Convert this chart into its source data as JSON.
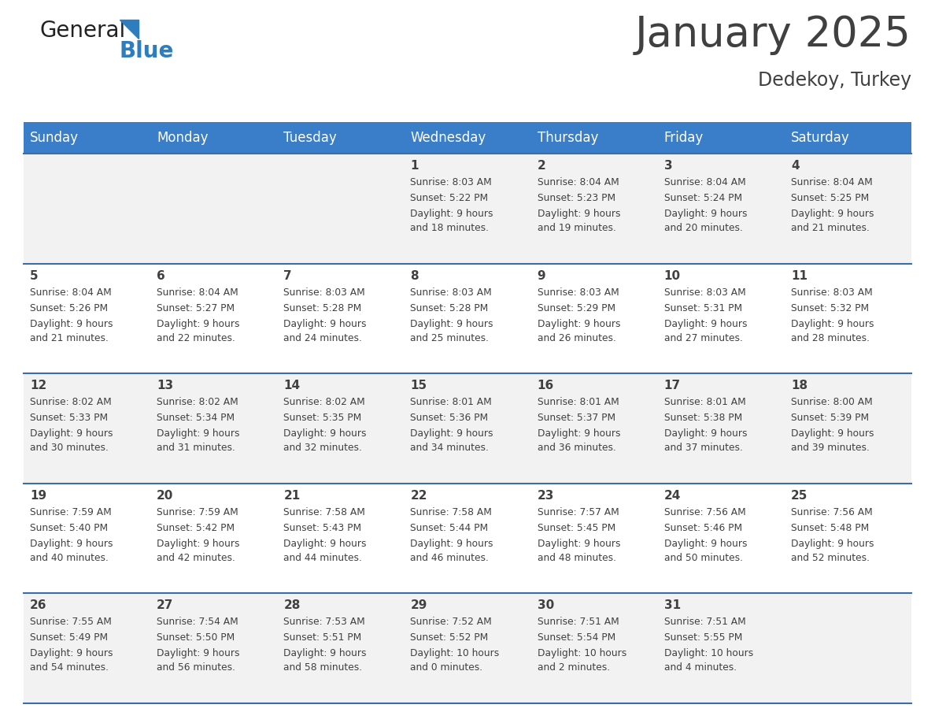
{
  "title": "January 2025",
  "subtitle": "Dedekoy, Turkey",
  "header_bg": "#3A7DC9",
  "header_text_color": "#FFFFFF",
  "cell_bg_row0": "#F2F2F2",
  "cell_bg_row1": "#FFFFFF",
  "row_line_color": "#3A6EA8",
  "text_color": "#404040",
  "days_of_week": [
    "Sunday",
    "Monday",
    "Tuesday",
    "Wednesday",
    "Thursday",
    "Friday",
    "Saturday"
  ],
  "calendar": [
    [
      {
        "day": "",
        "sunrise": "",
        "sunset": "",
        "daylight": ""
      },
      {
        "day": "",
        "sunrise": "",
        "sunset": "",
        "daylight": ""
      },
      {
        "day": "",
        "sunrise": "",
        "sunset": "",
        "daylight": ""
      },
      {
        "day": "1",
        "sunrise": "Sunrise: 8:03 AM",
        "sunset": "Sunset: 5:22 PM",
        "daylight": "Daylight: 9 hours\nand 18 minutes."
      },
      {
        "day": "2",
        "sunrise": "Sunrise: 8:04 AM",
        "sunset": "Sunset: 5:23 PM",
        "daylight": "Daylight: 9 hours\nand 19 minutes."
      },
      {
        "day": "3",
        "sunrise": "Sunrise: 8:04 AM",
        "sunset": "Sunset: 5:24 PM",
        "daylight": "Daylight: 9 hours\nand 20 minutes."
      },
      {
        "day": "4",
        "sunrise": "Sunrise: 8:04 AM",
        "sunset": "Sunset: 5:25 PM",
        "daylight": "Daylight: 9 hours\nand 21 minutes."
      }
    ],
    [
      {
        "day": "5",
        "sunrise": "Sunrise: 8:04 AM",
        "sunset": "Sunset: 5:26 PM",
        "daylight": "Daylight: 9 hours\nand 21 minutes."
      },
      {
        "day": "6",
        "sunrise": "Sunrise: 8:04 AM",
        "sunset": "Sunset: 5:27 PM",
        "daylight": "Daylight: 9 hours\nand 22 minutes."
      },
      {
        "day": "7",
        "sunrise": "Sunrise: 8:03 AM",
        "sunset": "Sunset: 5:28 PM",
        "daylight": "Daylight: 9 hours\nand 24 minutes."
      },
      {
        "day": "8",
        "sunrise": "Sunrise: 8:03 AM",
        "sunset": "Sunset: 5:28 PM",
        "daylight": "Daylight: 9 hours\nand 25 minutes."
      },
      {
        "day": "9",
        "sunrise": "Sunrise: 8:03 AM",
        "sunset": "Sunset: 5:29 PM",
        "daylight": "Daylight: 9 hours\nand 26 minutes."
      },
      {
        "day": "10",
        "sunrise": "Sunrise: 8:03 AM",
        "sunset": "Sunset: 5:31 PM",
        "daylight": "Daylight: 9 hours\nand 27 minutes."
      },
      {
        "day": "11",
        "sunrise": "Sunrise: 8:03 AM",
        "sunset": "Sunset: 5:32 PM",
        "daylight": "Daylight: 9 hours\nand 28 minutes."
      }
    ],
    [
      {
        "day": "12",
        "sunrise": "Sunrise: 8:02 AM",
        "sunset": "Sunset: 5:33 PM",
        "daylight": "Daylight: 9 hours\nand 30 minutes."
      },
      {
        "day": "13",
        "sunrise": "Sunrise: 8:02 AM",
        "sunset": "Sunset: 5:34 PM",
        "daylight": "Daylight: 9 hours\nand 31 minutes."
      },
      {
        "day": "14",
        "sunrise": "Sunrise: 8:02 AM",
        "sunset": "Sunset: 5:35 PM",
        "daylight": "Daylight: 9 hours\nand 32 minutes."
      },
      {
        "day": "15",
        "sunrise": "Sunrise: 8:01 AM",
        "sunset": "Sunset: 5:36 PM",
        "daylight": "Daylight: 9 hours\nand 34 minutes."
      },
      {
        "day": "16",
        "sunrise": "Sunrise: 8:01 AM",
        "sunset": "Sunset: 5:37 PM",
        "daylight": "Daylight: 9 hours\nand 36 minutes."
      },
      {
        "day": "17",
        "sunrise": "Sunrise: 8:01 AM",
        "sunset": "Sunset: 5:38 PM",
        "daylight": "Daylight: 9 hours\nand 37 minutes."
      },
      {
        "day": "18",
        "sunrise": "Sunrise: 8:00 AM",
        "sunset": "Sunset: 5:39 PM",
        "daylight": "Daylight: 9 hours\nand 39 minutes."
      }
    ],
    [
      {
        "day": "19",
        "sunrise": "Sunrise: 7:59 AM",
        "sunset": "Sunset: 5:40 PM",
        "daylight": "Daylight: 9 hours\nand 40 minutes."
      },
      {
        "day": "20",
        "sunrise": "Sunrise: 7:59 AM",
        "sunset": "Sunset: 5:42 PM",
        "daylight": "Daylight: 9 hours\nand 42 minutes."
      },
      {
        "day": "21",
        "sunrise": "Sunrise: 7:58 AM",
        "sunset": "Sunset: 5:43 PM",
        "daylight": "Daylight: 9 hours\nand 44 minutes."
      },
      {
        "day": "22",
        "sunrise": "Sunrise: 7:58 AM",
        "sunset": "Sunset: 5:44 PM",
        "daylight": "Daylight: 9 hours\nand 46 minutes."
      },
      {
        "day": "23",
        "sunrise": "Sunrise: 7:57 AM",
        "sunset": "Sunset: 5:45 PM",
        "daylight": "Daylight: 9 hours\nand 48 minutes."
      },
      {
        "day": "24",
        "sunrise": "Sunrise: 7:56 AM",
        "sunset": "Sunset: 5:46 PM",
        "daylight": "Daylight: 9 hours\nand 50 minutes."
      },
      {
        "day": "25",
        "sunrise": "Sunrise: 7:56 AM",
        "sunset": "Sunset: 5:48 PM",
        "daylight": "Daylight: 9 hours\nand 52 minutes."
      }
    ],
    [
      {
        "day": "26",
        "sunrise": "Sunrise: 7:55 AM",
        "sunset": "Sunset: 5:49 PM",
        "daylight": "Daylight: 9 hours\nand 54 minutes."
      },
      {
        "day": "27",
        "sunrise": "Sunrise: 7:54 AM",
        "sunset": "Sunset: 5:50 PM",
        "daylight": "Daylight: 9 hours\nand 56 minutes."
      },
      {
        "day": "28",
        "sunrise": "Sunrise: 7:53 AM",
        "sunset": "Sunset: 5:51 PM",
        "daylight": "Daylight: 9 hours\nand 58 minutes."
      },
      {
        "day": "29",
        "sunrise": "Sunrise: 7:52 AM",
        "sunset": "Sunset: 5:52 PM",
        "daylight": "Daylight: 10 hours\nand 0 minutes."
      },
      {
        "day": "30",
        "sunrise": "Sunrise: 7:51 AM",
        "sunset": "Sunset: 5:54 PM",
        "daylight": "Daylight: 10 hours\nand 2 minutes."
      },
      {
        "day": "31",
        "sunrise": "Sunrise: 7:51 AM",
        "sunset": "Sunset: 5:55 PM",
        "daylight": "Daylight: 10 hours\nand 4 minutes."
      },
      {
        "day": "",
        "sunrise": "",
        "sunset": "",
        "daylight": ""
      }
    ]
  ],
  "logo_general_color": "#222222",
  "logo_blue_color": "#2E7DBF",
  "logo_triangle_color": "#2E7DBF"
}
